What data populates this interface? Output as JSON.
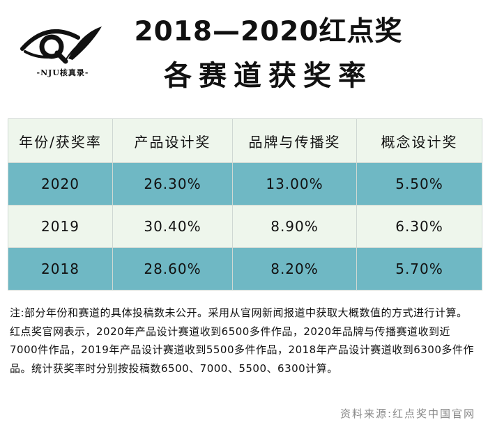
{
  "logo": {
    "caption": "-NJU核真录-"
  },
  "title": {
    "line1": "2018—2020红点奖",
    "line2": "各赛道获奖率"
  },
  "chart_data": {
    "type": "table",
    "columns": [
      "年份/获奖率",
      "产品设计奖",
      "品牌与传播奖",
      "概念设计奖"
    ],
    "rows": [
      {
        "year": "2020",
        "values": [
          "26.30%",
          "13.00%",
          "5.50%"
        ]
      },
      {
        "year": "2019",
        "values": [
          "30.40%",
          "8.90%",
          "6.30%"
        ]
      },
      {
        "year": "2018",
        "values": [
          "28.60%",
          "8.20%",
          "5.70%"
        ]
      }
    ],
    "colors": {
      "header_bg": "#eef6ec",
      "teal_row_bg": "#6fb8c4",
      "light_row_bg": "#eef6ec"
    }
  },
  "note": "注:部分年份和赛道的具体投稿数未公开。采用从官网新闻报道中获取大概数值的方式进行计算。红点奖官网表示，2020年产品设计赛道收到6500多件作品，2020年品牌与传播赛道收到近7000件作品，2019年产品设计赛道收到5500多件作品，2018年产品设计赛道收到6300多件作品。统计获奖率时分别按投稿数6500、7000、5500、6300计算。",
  "source": "资料来源:红点奖中国官网"
}
